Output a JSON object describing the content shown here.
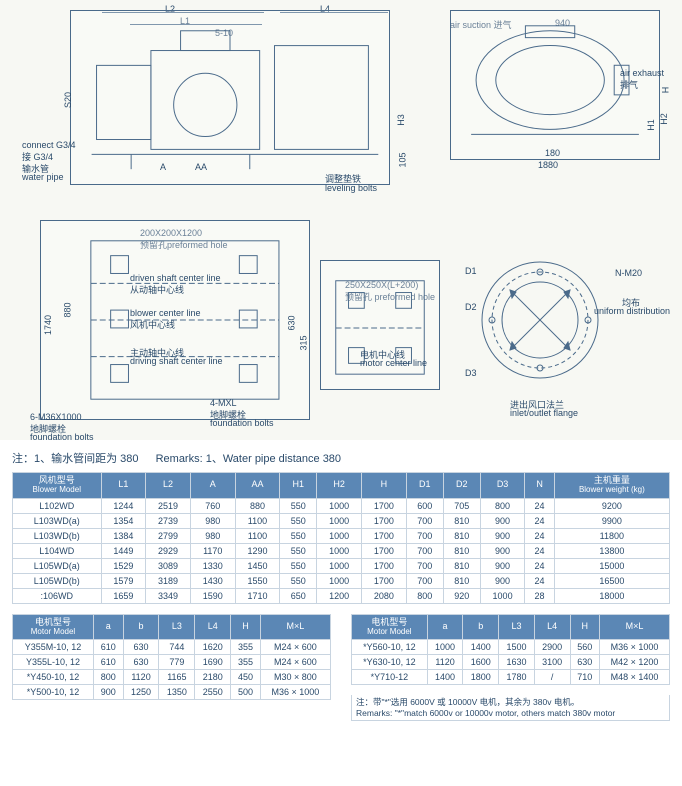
{
  "diagram": {
    "labels": {
      "L2": "L2",
      "L1": "L1",
      "L4": "L4",
      "slot": "5-10",
      "air_suction": "air suction 进气",
      "w940": "940",
      "air_exhaust": "air exhaust",
      "air_exhaust_cn": "排气",
      "H": "H",
      "H1": "H1",
      "H2": "H2",
      "H3": "H3",
      "connect": "connect G3/4",
      "connect_cn": "接 G3/4",
      "water_pipe_cn": "输水管",
      "water_pipe": "water pipe",
      "S20": "S20",
      "A": "A",
      "AA": "AA",
      "w105": "105",
      "lvl_cn": "调整垫铁",
      "lvl": "leveling bolts",
      "w180": "180",
      "w1880": "1880",
      "pfh1": "200X200X1200",
      "pfh1_cn": "预留孔preformed hole",
      "dscl": "driven shaft center line",
      "dscl_cn": "从动轴中心线",
      "bcl": "blower center line",
      "bcl_cn": "风机中心线",
      "drscl": "driving shaft center line",
      "drscl_cn": "主动轴中心线",
      "h880": "880",
      "h1740": "1740",
      "h630": "630",
      "h315": "315",
      "m6": "6-M36X1000",
      "m6_cn": "地脚螺栓",
      "m6_en": "foundation bolts",
      "pfh2": "250X250X(L+200)",
      "pfh2_cn": "预留孔 preformed hole",
      "mcl": "motor center line",
      "mcl_cn": "电机中心线",
      "m4": "4-MXL",
      "m4_cn": "地脚螺栓",
      "m4_en": "foundation bolts",
      "D1": "D1",
      "D2": "D2",
      "D3": "D3",
      "nm20": "N-M20",
      "nm20_cn": "均布",
      "nm20_en": "uniform distribution",
      "flange_cn": "进出风口法兰",
      "flange_en": "inlet/outlet flange"
    },
    "circle": {
      "stroke": "#4a6a8a",
      "fill": "none"
    }
  },
  "remarks": {
    "cn": "注：1、输水管间距为 380",
    "en": "Remarks: 1、Water pipe distance 380"
  },
  "blower_table": {
    "headers": [
      {
        "cn": "风机型号",
        "en": "Blower Model"
      },
      {
        "t": "L1"
      },
      {
        "t": "L2"
      },
      {
        "t": "A"
      },
      {
        "t": "AA"
      },
      {
        "t": "H1"
      },
      {
        "t": "H2"
      },
      {
        "t": "H"
      },
      {
        "t": "D1"
      },
      {
        "t": "D2"
      },
      {
        "t": "D3"
      },
      {
        "t": "N"
      },
      {
        "cn": "主机重量",
        "en": "Blower weight (kg)"
      }
    ],
    "rows": [
      [
        "L102WD",
        "1244",
        "2519",
        "760",
        "880",
        "550",
        "1000",
        "1700",
        "600",
        "705",
        "800",
        "24",
        "9200"
      ],
      [
        "L103WD(a)",
        "1354",
        "2739",
        "980",
        "1100",
        "550",
        "1000",
        "1700",
        "700",
        "810",
        "900",
        "24",
        "9900"
      ],
      [
        "L103WD(b)",
        "1384",
        "2799",
        "980",
        "1100",
        "550",
        "1000",
        "1700",
        "700",
        "810",
        "900",
        "24",
        "11800"
      ],
      [
        "L104WD",
        "1449",
        "2929",
        "1170",
        "1290",
        "550",
        "1000",
        "1700",
        "700",
        "810",
        "900",
        "24",
        "13800"
      ],
      [
        "L105WD(a)",
        "1529",
        "3089",
        "1330",
        "1450",
        "550",
        "1000",
        "1700",
        "700",
        "810",
        "900",
        "24",
        "15000"
      ],
      [
        "L105WD(b)",
        "1579",
        "3189",
        "1430",
        "1550",
        "550",
        "1000",
        "1700",
        "700",
        "810",
        "900",
        "24",
        "16500"
      ],
      [
        ":106WD",
        "1659",
        "3349",
        "1590",
        "1710",
        "650",
        "1200",
        "2080",
        "800",
        "920",
        "1000",
        "28",
        "18000"
      ]
    ]
  },
  "motor_table_left": {
    "headers": [
      {
        "cn": "电机型号",
        "en": "Motor Model"
      },
      {
        "t": "a"
      },
      {
        "t": "b"
      },
      {
        "t": "L3"
      },
      {
        "t": "L4"
      },
      {
        "t": "H"
      },
      {
        "t": "M×L"
      }
    ],
    "rows": [
      [
        "Y355M-10, 12",
        "610",
        "630",
        "744",
        "1620",
        "355",
        "M24 × 600"
      ],
      [
        "Y355L-10, 12",
        "610",
        "630",
        "779",
        "1690",
        "355",
        "M24 × 600"
      ],
      [
        "*Y450-10, 12",
        "800",
        "1120",
        "1165",
        "2180",
        "450",
        "M30 × 800"
      ],
      [
        "*Y500-10, 12",
        "900",
        "1250",
        "1350",
        "2550",
        "500",
        "M36 × 1000"
      ]
    ]
  },
  "motor_table_right": {
    "headers": [
      {
        "cn": "电机型号",
        "en": "Motor Model"
      },
      {
        "t": "a"
      },
      {
        "t": "b"
      },
      {
        "t": "L3"
      },
      {
        "t": "L4"
      },
      {
        "t": "H"
      },
      {
        "t": "M×L"
      }
    ],
    "rows": [
      [
        "*Y560-10, 12",
        "1000",
        "1400",
        "1500",
        "2900",
        "560",
        "M36 × 1000"
      ],
      [
        "*Y630-10, 12",
        "1120",
        "1600",
        "1630",
        "3100",
        "630",
        "M42 × 1200"
      ],
      [
        "*Y710-12",
        "1400",
        "1800",
        "1780",
        "/",
        "710",
        "M48 × 1400"
      ]
    ],
    "note_cn": "注：带\"*\"选用 6000V 或 10000V 电机，其余为 380v 电机。",
    "note_en": "Remarks: \"*\"match 6000v or 10000v motor, others match 380v motor"
  },
  "style": {
    "header_bg": "#5b87b5",
    "border": "#c8d4e0",
    "text": "#2a4a6a",
    "diagram_bg": "#f7f8f3"
  }
}
